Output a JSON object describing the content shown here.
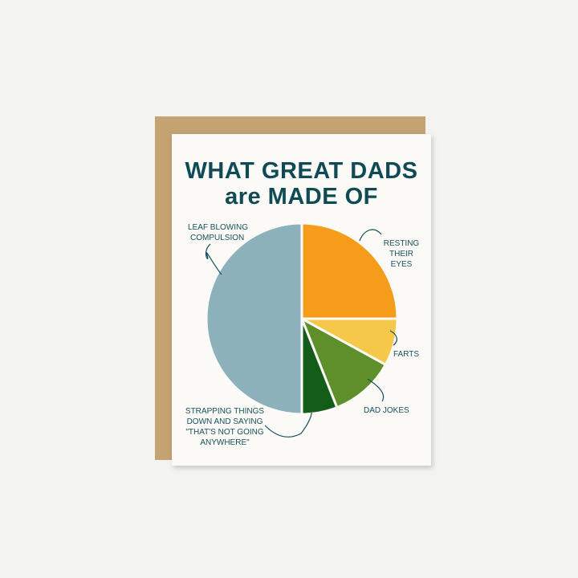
{
  "chart_data": {
    "type": "pie",
    "title": [
      "WHAT GREAT DADS",
      "are MADE OF"
    ],
    "slices": [
      {
        "label": "RESTING THEIR EYES",
        "value": 25,
        "color": "#f59c1a"
      },
      {
        "label": "FARTS",
        "value": 8,
        "color": "#f5c84a"
      },
      {
        "label": "DAD JOKES",
        "value": 11,
        "color": "#5f8f2a"
      },
      {
        "label": "STRAPPING THINGS DOWN AND SAYING \"THAT'S NOT GOING ANYWHERE\"",
        "value": 6,
        "color": "#135c1a"
      },
      {
        "label": "LEAF BLOWING COMPULSION",
        "value": 50,
        "color": "#8cb1bb"
      }
    ],
    "start_angle": "12 o'clock, clockwise"
  }
}
